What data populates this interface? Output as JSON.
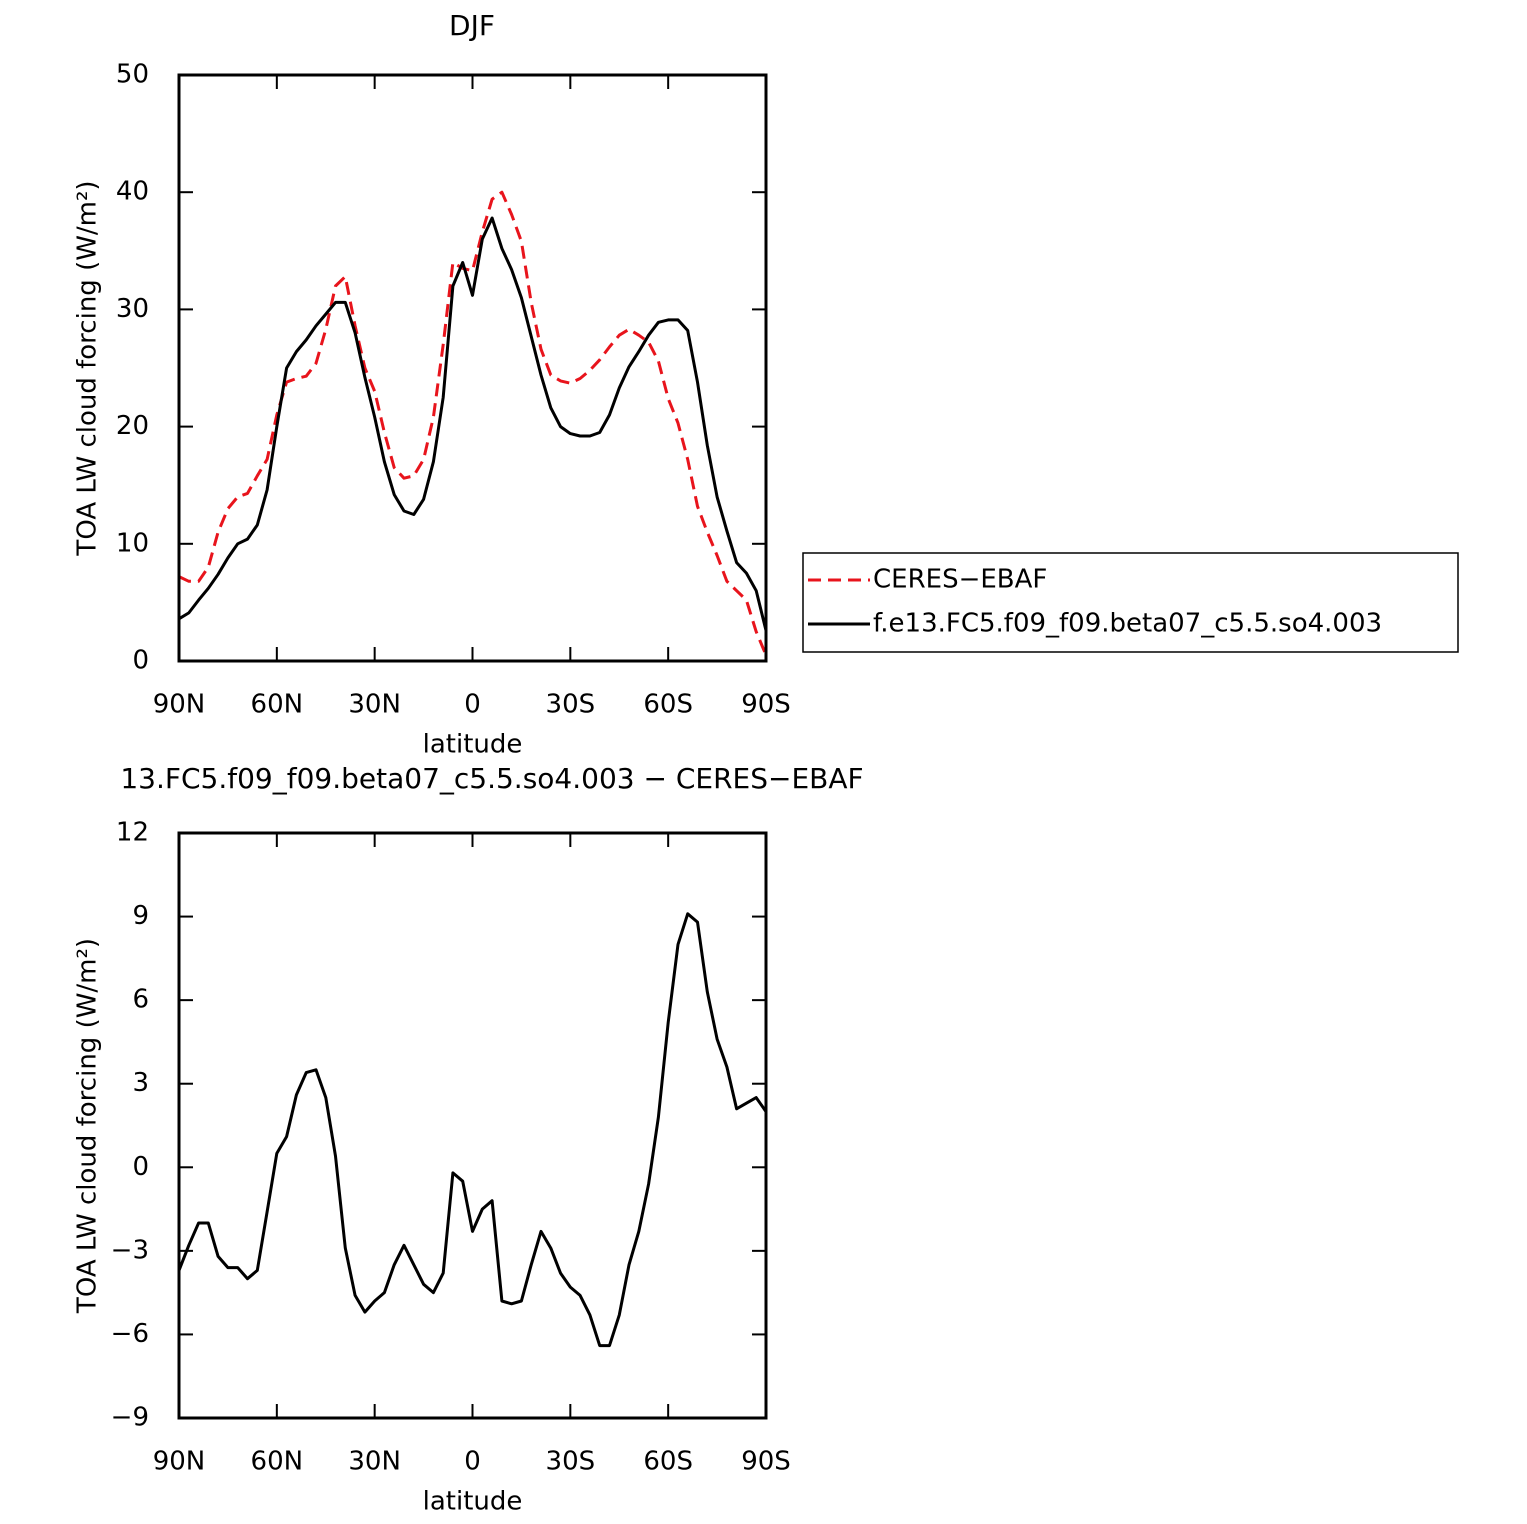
{
  "chart_data": [
    {
      "type": "line",
      "title": "DJF",
      "xlabel": "latitude",
      "ylabel": "TOA LW cloud forcing (W/m²)",
      "x": [
        90,
        87,
        84,
        81,
        78,
        75,
        72,
        69,
        66,
        63,
        60,
        57,
        54,
        51,
        48,
        45,
        42,
        39,
        36,
        33,
        30,
        27,
        24,
        21,
        18,
        15,
        12,
        9,
        6,
        3,
        0,
        -3,
        -6,
        -9,
        -12,
        -15,
        -18,
        -21,
        -24,
        -27,
        -30,
        -33,
        -36,
        -39,
        -42,
        -45,
        -48,
        -51,
        -54,
        -57,
        -60,
        -63,
        -66,
        -69,
        -72,
        -75,
        -78,
        -81,
        -84,
        -87,
        -90
      ],
      "series": [
        {
          "name": "CERES−EBAF",
          "color": "#e8141c",
          "dash": true,
          "values": [
            7.2,
            6.8,
            6.8,
            8,
            11,
            13,
            14,
            14.3,
            15.8,
            17.2,
            21,
            23.8,
            24.1,
            24.3,
            25.4,
            28.3,
            32,
            32.8,
            28.6,
            25,
            23,
            19.5,
            16.5,
            15.6,
            15.8,
            17.2,
            20.8,
            27,
            34,
            33.5,
            33.3,
            36.6,
            39.4,
            40,
            38.1,
            35.8,
            30.6,
            26.6,
            24.4,
            23.9,
            23.7,
            24.1,
            24.8,
            25.7,
            26.8,
            27.8,
            28.3,
            27.8,
            27.2,
            25.6,
            22.4,
            20.3,
            17.2,
            13.2,
            11,
            9,
            6.8,
            6,
            5.2,
            2.5,
            0.5
          ]
        },
        {
          "name": "f.e13.FC5.f09_f09.beta07_c5.5.so4.003",
          "color": "#000000",
          "dash": false,
          "values": [
            3.6,
            4.1,
            5.2,
            6.2,
            7.4,
            8.8,
            10,
            10.4,
            11.6,
            14.6,
            20,
            25,
            26.4,
            27.4,
            28.6,
            29.6,
            30.6,
            30.6,
            28,
            24.2,
            20.8,
            17,
            14.2,
            12.8,
            12.5,
            13.8,
            17,
            22.5,
            32,
            34,
            31.2,
            36,
            37.8,
            35.2,
            33.4,
            31,
            27.7,
            24.4,
            21.6,
            20,
            19.4,
            19.2,
            19.2,
            19.5,
            21,
            23.3,
            25.1,
            26.4,
            27.8,
            28.9,
            29.1,
            29.1,
            28.2,
            23.8,
            18.4,
            14,
            11.1,
            8.4,
            7.5,
            6,
            2.6
          ]
        }
      ],
      "xlim": [
        90,
        -90
      ],
      "xticks": [
        {
          "value": 90,
          "label": "90N"
        },
        {
          "value": 60,
          "label": "60N"
        },
        {
          "value": 30,
          "label": "30N"
        },
        0,
        {
          "value": -30,
          "label": "30S"
        },
        {
          "value": -60,
          "label": "60S"
        },
        {
          "value": -90,
          "label": "90S"
        }
      ],
      "ylim": [
        0,
        50
      ],
      "yticks": [
        0,
        10,
        20,
        30,
        40,
        50
      ],
      "legend": "right"
    },
    {
      "type": "line",
      "title": "13.FC5.f09_f09.beta07_c5.5.so4.003 − CERES−EBAF",
      "xlabel": "latitude",
      "ylabel": "TOA LW cloud forcing (W/m²)",
      "x": [
        90,
        87,
        84,
        81,
        78,
        75,
        72,
        69,
        66,
        63,
        60,
        57,
        54,
        51,
        48,
        45,
        42,
        39,
        36,
        33,
        30,
        27,
        24,
        21,
        18,
        15,
        12,
        9,
        6,
        3,
        0,
        -3,
        -6,
        -9,
        -12,
        -15,
        -18,
        -21,
        -24,
        -27,
        -30,
        -33,
        -36,
        -39,
        -42,
        -45,
        -48,
        -51,
        -54,
        -57,
        -60,
        -63,
        -66,
        -69,
        -72,
        -75,
        -78,
        -81,
        -84,
        -87,
        -90
      ],
      "series": [
        {
          "color": "#000000",
          "dash": false,
          "values": [
            -3.7,
            -2.8,
            -2,
            -2,
            -3.2,
            -3.6,
            -3.6,
            -4,
            -3.7,
            -1.6,
            0.5,
            1.1,
            2.6,
            3.4,
            3.5,
            2.5,
            0.4,
            -2.9,
            -4.6,
            -5.2,
            -4.8,
            -4.5,
            -3.5,
            -2.8,
            -3.5,
            -4.2,
            -4.5,
            -3.8,
            -0.2,
            -0.5,
            -2.3,
            -1.5,
            -1.2,
            -4.8,
            -4.9,
            -4.8,
            -3.5,
            -2.3,
            -2.9,
            -3.8,
            -4.3,
            -4.6,
            -5.3,
            -6.4,
            -6.4,
            -5.3,
            -3.5,
            -2.3,
            -0.6,
            1.8,
            5.2,
            8,
            9.1,
            8.8,
            6.3,
            4.6,
            3.6,
            2.1,
            2.3,
            2.5,
            2
          ]
        }
      ],
      "xlim": [
        90,
        -90
      ],
      "xticks": [
        {
          "value": 90,
          "label": "90N"
        },
        {
          "value": 60,
          "label": "60N"
        },
        {
          "value": 30,
          "label": "30N"
        },
        0,
        {
          "value": -30,
          "label": "30S"
        },
        {
          "value": -60,
          "label": "60S"
        },
        {
          "value": -90,
          "label": "90S"
        }
      ],
      "ylim": [
        -9,
        12
      ],
      "yticks": [
        {
          "value": -9,
          "label": "−9"
        },
        {
          "value": -6,
          "label": "−6"
        },
        {
          "value": -3,
          "label": "−3"
        },
        0,
        3,
        6,
        9,
        12
      ]
    }
  ]
}
